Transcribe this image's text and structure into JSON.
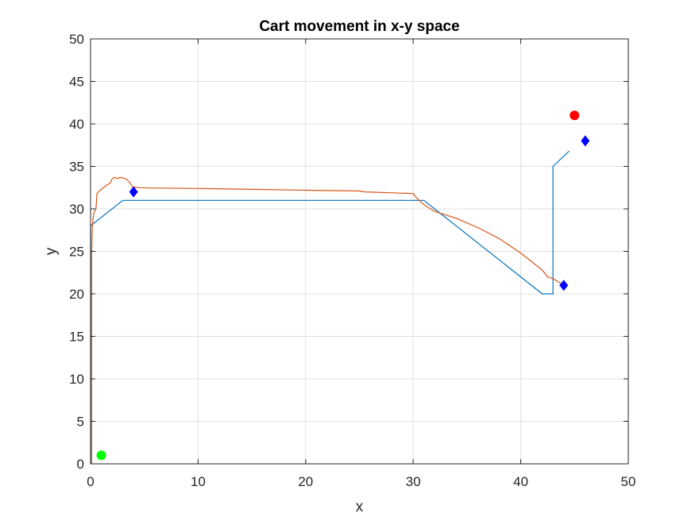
{
  "chart_data": {
    "type": "line",
    "title": "Cart movement in x-y space",
    "xlabel": "x",
    "ylabel": "y",
    "xlim": [
      0,
      50
    ],
    "ylim": [
      0,
      50
    ],
    "xticks": [
      "0",
      "10",
      "20",
      "30",
      "40",
      "50"
    ],
    "yticks": [
      "0",
      "5",
      "10",
      "15",
      "20",
      "25",
      "30",
      "35",
      "40",
      "45",
      "50"
    ],
    "grid": true,
    "colors": {
      "planned_path": "#0072BD",
      "actual_path": "#D95319",
      "start_marker": "#00FF00",
      "goal_marker": "#FF0000",
      "waypoint_marker": "#0000FF",
      "grid": "#E0E0E0",
      "axis": "#262626"
    },
    "series": [
      {
        "x": [
          0.0,
          0.0,
          3.0,
          31.0,
          42.0,
          43.0,
          43.0,
          43.0,
          44.5
        ],
        "y": [
          0.0,
          28.0,
          31.0,
          31.0,
          20.0,
          20.0,
          20.0,
          35.0,
          36.8
        ],
        "color": "#0072BD"
      },
      {
        "x": [
          0.1,
          0.1,
          0.15,
          0.2,
          0.3,
          0.5,
          0.6,
          0.9,
          1.2,
          1.5,
          1.8,
          2.0,
          2.2,
          2.5,
          2.9,
          3.3,
          3.6,
          3.9,
          4.5,
          6.0,
          10.0,
          15.0,
          20.0,
          25.0,
          25.5,
          30.0,
          30.3,
          31.0,
          32.0,
          34.0,
          36.0,
          38.0,
          40.0,
          42.0,
          42.5,
          43.0,
          44.0
        ],
        "y": [
          0.0,
          25.0,
          27.5,
          28.5,
          29.5,
          30.0,
          31.8,
          32.2,
          32.5,
          32.8,
          33.0,
          33.5,
          33.7,
          33.6,
          33.7,
          33.5,
          33.2,
          32.6,
          32.5,
          32.45,
          32.4,
          32.3,
          32.2,
          32.1,
          32.0,
          31.8,
          31.3,
          30.5,
          29.7,
          28.9,
          27.8,
          26.5,
          24.8,
          22.8,
          22.0,
          21.8,
          21.0
        ],
        "color": "#D95319"
      }
    ],
    "markers": {
      "start": {
        "x": 1,
        "y": 1,
        "shape": "circle",
        "color": "#00FF00"
      },
      "goal": {
        "x": 45,
        "y": 41,
        "shape": "circle",
        "color": "#FF0000"
      },
      "waypoints": [
        {
          "x": 4,
          "y": 32,
          "shape": "diamond",
          "color": "#0000FF"
        },
        {
          "x": 44,
          "y": 21,
          "shape": "diamond",
          "color": "#0000FF"
        },
        {
          "x": 46,
          "y": 38,
          "shape": "diamond",
          "color": "#0000FF"
        }
      ]
    }
  }
}
